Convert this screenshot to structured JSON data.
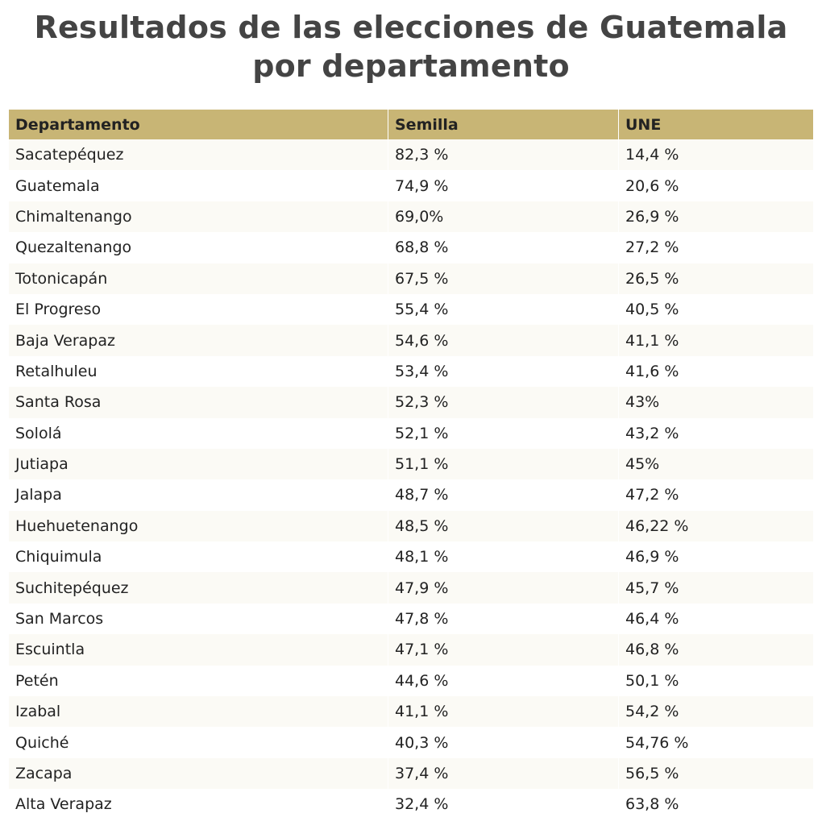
{
  "title": "Resultados de las elecciones de Guatemala por departamento",
  "colors": {
    "header_background": "#c8b575",
    "title_text": "#444444",
    "row_stripe": "#fbfaf5"
  },
  "table": {
    "headers": [
      "Departamento",
      "Semilla",
      "UNE"
    ],
    "rows": [
      [
        "Sacatepéquez",
        "82,3 %",
        "14,4 %"
      ],
      [
        "Guatemala",
        "74,9 %",
        "20,6 %"
      ],
      [
        "Chimaltenango",
        "69,0%",
        "26,9 %"
      ],
      [
        "Quezaltenango",
        "68,8 %",
        "27,2 %"
      ],
      [
        "Totonicapán",
        "67,5 %",
        "26,5 %"
      ],
      [
        "El Progreso",
        "55,4 %",
        "40,5 %"
      ],
      [
        "Baja Verapaz",
        "54,6 %",
        "41,1 %"
      ],
      [
        "Retalhuleu",
        "53,4 %",
        "41,6 %"
      ],
      [
        "Santa Rosa",
        "52,3 %",
        "43%"
      ],
      [
        "Sololá",
        "52,1 %",
        "43,2 %"
      ],
      [
        "Jutiapa",
        "51,1 %",
        "45%"
      ],
      [
        "Jalapa",
        "48,7 %",
        "47,2 %"
      ],
      [
        "Huehuetenango",
        "48,5 %",
        "46,22 %"
      ],
      [
        "Chiquimula",
        "48,1 %",
        "46,9 %"
      ],
      [
        "Suchitepéquez",
        "47,9 %",
        "45,7 %"
      ],
      [
        "San Marcos",
        "47,8 %",
        "46,4 %"
      ],
      [
        "Escuintla",
        "47,1 %",
        "46,8 %"
      ],
      [
        "Petén",
        "44,6 %",
        "50,1 %"
      ],
      [
        "Izabal",
        "41,1 %",
        "54,2 %"
      ],
      [
        "Quiché",
        "40,3 %",
        "54,76 %"
      ],
      [
        "Zacapa",
        "37,4 %",
        "56,5 %"
      ],
      [
        "Alta Verapaz",
        "32,4 %",
        "63,8 %"
      ]
    ]
  }
}
